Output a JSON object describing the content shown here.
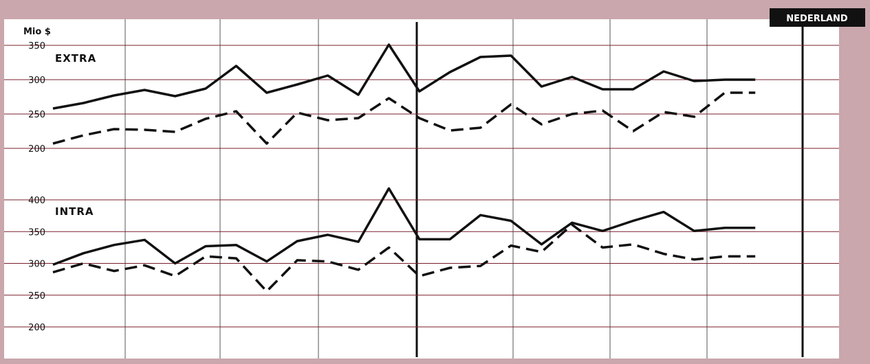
{
  "badge": {
    "label": "NEDERLAND"
  },
  "colors": {
    "background": "#c9a7ad",
    "plot": "#ffffff",
    "grid": "#7a1f2b",
    "ink": "#111111",
    "badge": "#111111"
  },
  "chart_data": [
    {
      "type": "line",
      "title": "",
      "label": "EXTRA",
      "ylabel": "Mio $",
      "ylim": [
        200,
        350
      ],
      "yticks": [
        200,
        250,
        300,
        350
      ],
      "x": [
        0,
        1,
        2,
        3,
        4,
        5,
        6,
        7,
        8,
        9,
        10,
        11,
        12,
        13,
        14,
        15,
        16,
        17,
        18,
        19,
        20,
        21,
        22,
        23
      ],
      "series": [
        {
          "style": "solid",
          "values": [
            258,
            266,
            277,
            285,
            276,
            287,
            320,
            281,
            293,
            306,
            278,
            351,
            283,
            311,
            333,
            335,
            290,
            304,
            286,
            286,
            312,
            298,
            300,
            300
          ]
        },
        {
          "style": "dashed",
          "values": [
            207,
            219,
            228,
            227,
            224,
            243,
            254,
            207,
            252,
            241,
            244,
            273,
            244,
            226,
            230,
            264,
            235,
            250,
            255,
            225,
            253,
            246,
            281,
            281
          ]
        }
      ]
    },
    {
      "type": "line",
      "title": "",
      "label": "INTRA",
      "ylim": [
        200,
        400
      ],
      "yticks": [
        200,
        250,
        300,
        350,
        400
      ],
      "x": [
        0,
        1,
        2,
        3,
        4,
        5,
        6,
        7,
        8,
        9,
        10,
        11,
        12,
        13,
        14,
        15,
        16,
        17,
        18,
        19,
        20,
        21,
        22,
        23
      ],
      "series": [
        {
          "style": "solid",
          "values": [
            298,
            316,
            329,
            337,
            300,
            327,
            329,
            303,
            335,
            345,
            334,
            418,
            338,
            338,
            376,
            367,
            330,
            364,
            351,
            367,
            381,
            351,
            356,
            356
          ]
        },
        {
          "style": "dashed",
          "values": [
            286,
            300,
            288,
            297,
            280,
            311,
            308,
            256,
            305,
            303,
            290,
            325,
            280,
            293,
            296,
            328,
            318,
            361,
            325,
            330,
            315,
            306,
            311,
            311
          ]
        }
      ]
    }
  ]
}
